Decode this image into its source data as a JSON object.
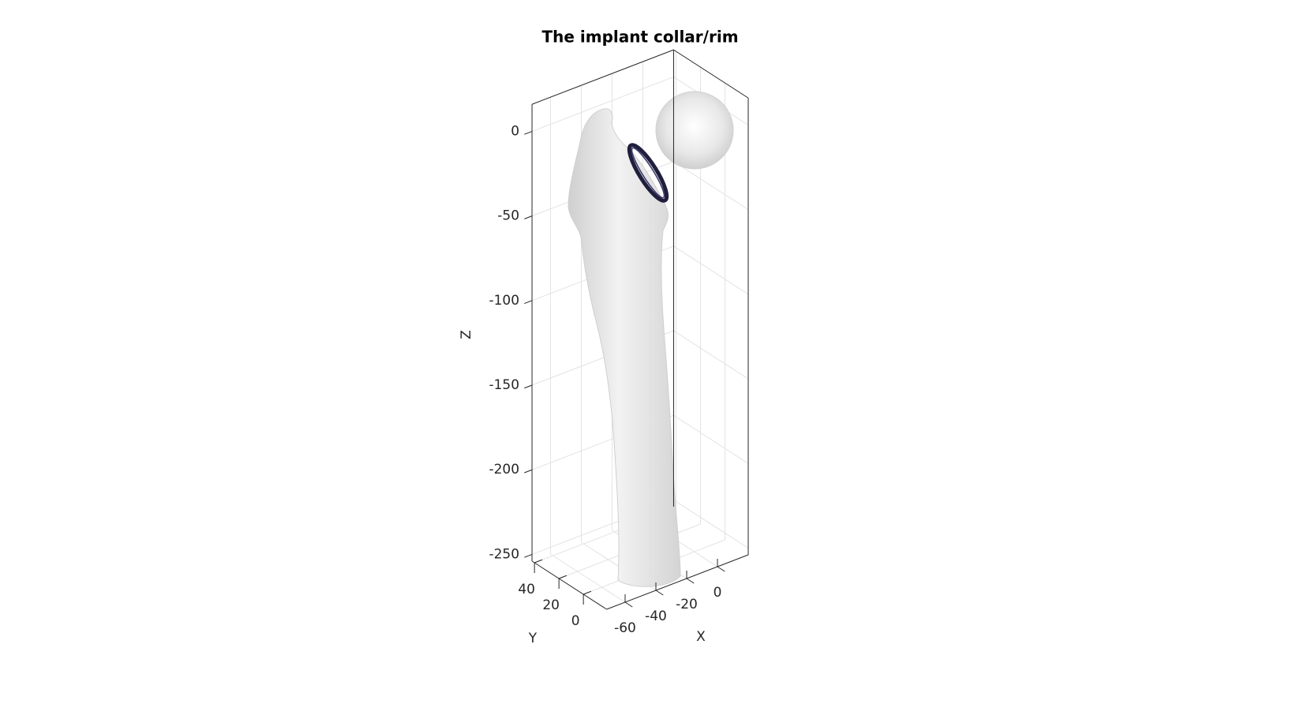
{
  "chart_data": {
    "type": "surface3d",
    "title": "The implant collar/rim",
    "xlabel": "X",
    "ylabel": "Y",
    "zlabel": "Z",
    "xlim": [
      -72,
      20
    ],
    "ylim": [
      -19,
      42
    ],
    "zlim": [
      -254,
      16
    ],
    "xticks": [
      -60,
      -40,
      -20,
      0
    ],
    "yticks": [
      0,
      20,
      40
    ],
    "zticks": [
      -250,
      -200,
      -150,
      -100,
      -50,
      0
    ],
    "grid": true
  }
}
